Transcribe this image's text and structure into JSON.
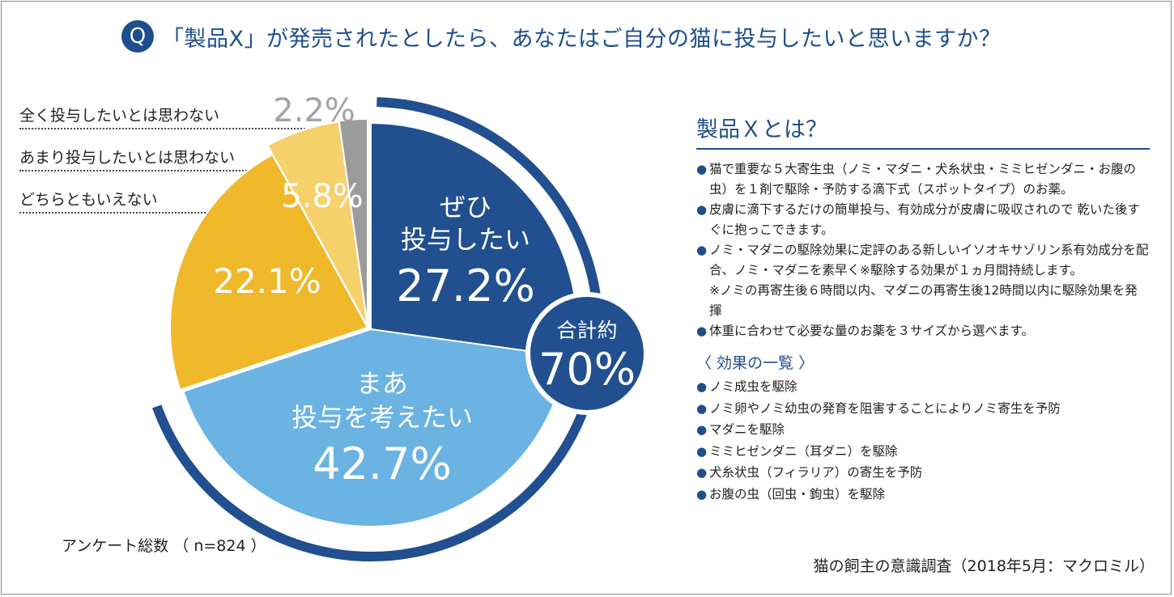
{
  "question": {
    "badge": "Q",
    "text": "「製品X」が発売されたとしたら、あなたはご自分の猫に投与したいと思いますか？"
  },
  "colors": {
    "zehi": "#214f8f",
    "maa": "#6ab3e3",
    "dochira": "#efb92b",
    "amari": "#f5d06b",
    "mattaku": "#9b9b9b",
    "ring": "#214f8f"
  },
  "chart_data": {
    "type": "pie",
    "slices": [
      {
        "key": "zehi",
        "label_lines": [
          "ぜひ",
          "投与したい"
        ],
        "value": 27.2,
        "value_text": "27.2%"
      },
      {
        "key": "maa",
        "label_lines": [
          "まあ",
          "投与を考えたい"
        ],
        "value": 42.7,
        "value_text": "42.7%"
      },
      {
        "key": "dochira",
        "label": "どちらともいえない",
        "value": 22.1,
        "value_text": "22.1%"
      },
      {
        "key": "amari",
        "label": "あまり投与したいとは思わない",
        "value": 5.8,
        "value_text": "5.8%"
      },
      {
        "key": "mattaku",
        "label": "全く投与したいとは思わない",
        "value": 2.2,
        "value_text": "2.2%"
      }
    ],
    "total": {
      "label": "合計約",
      "value": 70,
      "value_text": "70%"
    },
    "sample": "アンケート総数 （ n=824 ）"
  },
  "outside_labels": {
    "mattaku": "全く投与したいとは思わない",
    "amari": "あまり投与したいとは思わない",
    "dochira": "どちらともいえない"
  },
  "side": {
    "title": "製品Ｘとは？",
    "bullets": [
      "猫で重要な５大寄生虫（ノミ・マダニ・犬糸状虫・ミミヒゼンダニ・お腹の虫）を１剤で駆除・予防する滴下式（スポットタイプ）のお薬。",
      "皮膚に滴下するだけの簡単投与、有効成分が皮膚に吸収されので 乾いた後すぐに抱っこできます。",
      "ノミ・マダニの駆除効果に定評のある新しいイソオキサゾリン系有効成分を配合、ノミ・マダニを素早く※駆除する効果が１ヵ月間持続します。"
    ],
    "note": "※ノミの再寄生後６時間以内、マダニの再寄生後12時間以内に駆除効果を発揮",
    "last_bullet": "体重に合わせて必要な量のお薬を３サイズから選べます。",
    "effects_title": "〈 効果の一覧 〉",
    "effects": [
      "ノミ成虫を駆除",
      "ノミ卵やノミ幼虫の発育を阻害することによりノミ寄生を予防",
      "マダニを駆除",
      "ミミヒゼンダニ（耳ダニ）を駆除",
      "犬糸状虫（フィラリア）の寄生を予防",
      "お腹の虫（回虫・鉤虫）を駆除"
    ]
  },
  "source": "猫の飼主の意識調査（2018年5月：マクロミル）",
  "bullet_glyph": "●"
}
